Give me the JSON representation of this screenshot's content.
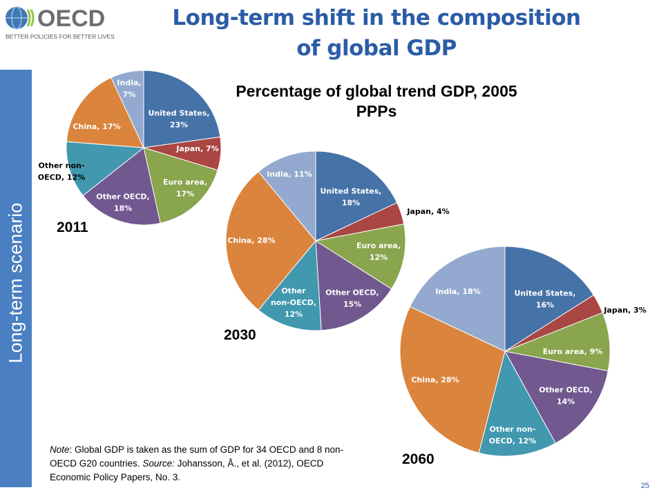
{
  "logo": {
    "name": "OECD",
    "tagline": "BETTER POLICIES FOR BETTER LIVES"
  },
  "title_line1": "Long-term shift in the composition",
  "title_line2": "of global GDP",
  "sidebar_text": "Long-term scenario",
  "chart_data": [
    {
      "type": "pie",
      "title": "2011",
      "subtitle": "Percentage of global trend GDP, 2005 PPPs",
      "slices": [
        {
          "name": "United States",
          "value": 23,
          "label_lines": [
            "United States,",
            "23%"
          ],
          "color": "#4572a7"
        },
        {
          "name": "Japan",
          "value": 7,
          "label_lines": [
            "Japan, 7%"
          ],
          "color": "#aa4643"
        },
        {
          "name": "Euro area",
          "value": 17,
          "label_lines": [
            "Euro area,",
            "17%"
          ],
          "color": "#89a54e"
        },
        {
          "name": "Other OECD",
          "value": 18,
          "label_lines": [
            "Other OECD,",
            "18%"
          ],
          "color": "#71588f"
        },
        {
          "name": "Other non-OECD",
          "value": 12,
          "label_lines": [
            "Other non-",
            "OECD, 12%"
          ],
          "color": "#4198af"
        },
        {
          "name": "China",
          "value": 17,
          "label_lines": [
            "China, 17%"
          ],
          "color": "#db843d"
        },
        {
          "name": "India",
          "value": 7,
          "label_lines": [
            "India,",
            "7%"
          ],
          "color": "#93a9cf"
        }
      ]
    },
    {
      "type": "pie",
      "title": "2030",
      "slices": [
        {
          "name": "United States",
          "value": 18,
          "label_lines": [
            "United States,",
            "18%"
          ],
          "color": "#4572a7"
        },
        {
          "name": "Japan",
          "value": 4,
          "label_lines": [
            "Japan, 4%"
          ],
          "color": "#aa4643"
        },
        {
          "name": "Euro area",
          "value": 12,
          "label_lines": [
            "Euro area,",
            "12%"
          ],
          "color": "#89a54e"
        },
        {
          "name": "Other OECD",
          "value": 15,
          "label_lines": [
            "Other OECD,",
            "15%"
          ],
          "color": "#71588f"
        },
        {
          "name": "Other non-OECD",
          "value": 12,
          "label_lines": [
            "Other",
            "non-OECD,",
            "12%"
          ],
          "color": "#4198af"
        },
        {
          "name": "China",
          "value": 28,
          "label_lines": [
            "China, 28%"
          ],
          "color": "#db843d"
        },
        {
          "name": "India",
          "value": 11,
          "label_lines": [
            "India, 11%"
          ],
          "color": "#93a9cf"
        }
      ]
    },
    {
      "type": "pie",
      "title": "2060",
      "slices": [
        {
          "name": "United States",
          "value": 16,
          "label_lines": [
            "United States,",
            "16%"
          ],
          "color": "#4572a7"
        },
        {
          "name": "Japan",
          "value": 3,
          "label_lines": [
            "Japan, 3%"
          ],
          "color": "#aa4643"
        },
        {
          "name": "Euro area",
          "value": 9,
          "label_lines": [
            "Euro area, 9%"
          ],
          "color": "#89a54e"
        },
        {
          "name": "Other OECD",
          "value": 14,
          "label_lines": [
            "Other OECD,",
            "14%"
          ],
          "color": "#71588f"
        },
        {
          "name": "Other non-OECD",
          "value": 12,
          "label_lines": [
            "Other non-",
            "OECD, 12%"
          ],
          "color": "#4198af"
        },
        {
          "name": "China",
          "value": 28,
          "label_lines": [
            "China, 28%"
          ],
          "color": "#db843d"
        },
        {
          "name": "India",
          "value": 18,
          "label_lines": [
            "India, 18%"
          ],
          "color": "#93a9cf"
        }
      ]
    }
  ],
  "note": {
    "note_label": "Note",
    "note_text": ": Global GDP is taken as the sum of GDP for 34 OECD and 8 non-OECD G20 countries.  ",
    "source_label": "Source:",
    "source_text": " Johansson, Å., et al. (2012), OECD Economic Policy Papers, No. 3."
  },
  "page_number": "25"
}
